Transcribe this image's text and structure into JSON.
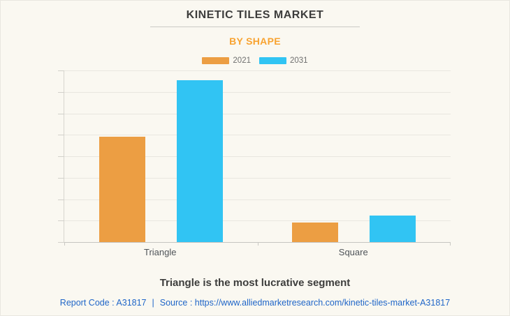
{
  "header": {
    "title": "KINETIC TILES MARKET",
    "subtitle": "BY SHAPE",
    "subtitle_color": "#F8A331"
  },
  "legend": {
    "items": [
      {
        "label": "2021",
        "color": "#EC9E43"
      },
      {
        "label": "2031",
        "color": "#31C4F3"
      }
    ]
  },
  "chart_data": {
    "type": "bar",
    "title": "KINETIC TILES MARKET",
    "subtitle": "BY SHAPE",
    "categories": [
      "Triangle",
      "Square"
    ],
    "series": [
      {
        "name": "2021",
        "color": "#EC9E43",
        "values": [
          4.9,
          0.9
        ]
      },
      {
        "name": "2031",
        "color": "#31C4F3",
        "values": [
          7.55,
          1.25
        ]
      }
    ],
    "xlabel": "",
    "ylabel": "",
    "ylim": [
      0,
      8
    ],
    "gridline_step": 1,
    "grid": true,
    "y_tick_labels_visible": false,
    "legend_position": "top"
  },
  "caption": "Triangle is the most lucrative segment",
  "footer": {
    "report_code": "Report Code : A31817",
    "separator": "|",
    "source": "Source : https://www.alliedmarketresearch.com/kinetic-tiles-market-A31817",
    "link_color": "#2066C8"
  },
  "colors": {
    "background": "#FAF8F1",
    "title_text": "#3D3D3C",
    "gridline": "#E9E7E0",
    "axis_line": "#D7D5CF",
    "baseline": "#C5C4C0",
    "category_label": "#4F5459",
    "legend_label": "#6F6F6F"
  }
}
